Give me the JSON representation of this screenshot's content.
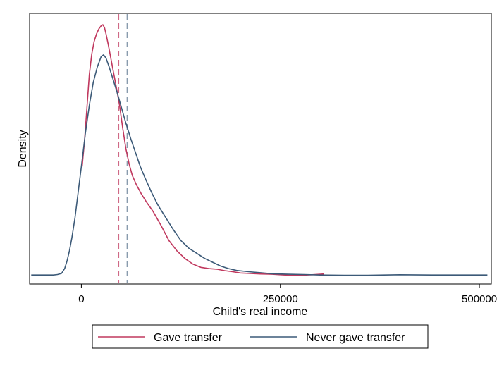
{
  "chart_data": {
    "type": "line",
    "title": "",
    "xlabel": "Child's real income",
    "ylabel": "Density",
    "xlim": [
      -65000,
      515000
    ],
    "ylim": [
      0,
      1.0
    ],
    "x_ticks": [
      {
        "value": 0,
        "label": "0"
      },
      {
        "value": 250000,
        "label": "250000"
      },
      {
        "value": 500000,
        "label": "500000"
      }
    ],
    "y_ticks": [],
    "grid": false,
    "legend_position": "bottom",
    "series": [
      {
        "name": "Gave transfer",
        "color": "#c0385e",
        "mean": 46900,
        "points": [
          [
            1000,
            0.43
          ],
          [
            4000,
            0.53
          ],
          [
            7000,
            0.66
          ],
          [
            10000,
            0.79
          ],
          [
            13000,
            0.87
          ],
          [
            16000,
            0.92
          ],
          [
            19000,
            0.95
          ],
          [
            22000,
            0.97
          ],
          [
            25000,
            0.982
          ],
          [
            27000,
            0.986
          ],
          [
            29000,
            0.975
          ],
          [
            31000,
            0.95
          ],
          [
            34000,
            0.905
          ],
          [
            37000,
            0.855
          ],
          [
            40000,
            0.805
          ],
          [
            44000,
            0.74
          ],
          [
            48000,
            0.67
          ],
          [
            52000,
            0.58
          ],
          [
            56000,
            0.5
          ],
          [
            60000,
            0.44
          ],
          [
            64000,
            0.395
          ],
          [
            69000,
            0.36
          ],
          [
            75000,
            0.325
          ],
          [
            82000,
            0.29
          ],
          [
            90000,
            0.255
          ],
          [
            100000,
            0.2
          ],
          [
            110000,
            0.14
          ],
          [
            120000,
            0.1
          ],
          [
            130000,
            0.07
          ],
          [
            140000,
            0.048
          ],
          [
            150000,
            0.035
          ],
          [
            160000,
            0.03
          ],
          [
            170000,
            0.028
          ],
          [
            180000,
            0.022
          ],
          [
            190000,
            0.018
          ],
          [
            200000,
            0.013
          ],
          [
            212000,
            0.011
          ],
          [
            225000,
            0.009
          ],
          [
            240000,
            0.008
          ],
          [
            250000,
            0.006
          ],
          [
            262000,
            0.004
          ],
          [
            275000,
            0.004
          ],
          [
            290000,
            0.006
          ],
          [
            300000,
            0.008
          ],
          [
            305000,
            0.009
          ]
        ]
      },
      {
        "name": "Never gave transfer",
        "color": "#3c5a78",
        "mean": 57500,
        "points": [
          [
            -63000,
            0.005
          ],
          [
            -55000,
            0.005
          ],
          [
            -45000,
            0.005
          ],
          [
            -35000,
            0.005
          ],
          [
            -30000,
            0.007
          ],
          [
            -25000,
            0.011
          ],
          [
            -21000,
            0.03
          ],
          [
            -18000,
            0.06
          ],
          [
            -15000,
            0.1
          ],
          [
            -12000,
            0.15
          ],
          [
            -8000,
            0.23
          ],
          [
            -4000,
            0.33
          ],
          [
            0,
            0.43
          ],
          [
            5000,
            0.56
          ],
          [
            10000,
            0.67
          ],
          [
            15000,
            0.76
          ],
          [
            20000,
            0.82
          ],
          [
            25000,
            0.862
          ],
          [
            28000,
            0.868
          ],
          [
            31000,
            0.855
          ],
          [
            35000,
            0.82
          ],
          [
            40000,
            0.77
          ],
          [
            45000,
            0.72
          ],
          [
            50000,
            0.665
          ],
          [
            56000,
            0.6
          ],
          [
            62000,
            0.54
          ],
          [
            68000,
            0.485
          ],
          [
            74000,
            0.43
          ],
          [
            80000,
            0.385
          ],
          [
            88000,
            0.33
          ],
          [
            96000,
            0.28
          ],
          [
            105000,
            0.235
          ],
          [
            115000,
            0.185
          ],
          [
            125000,
            0.14
          ],
          [
            135000,
            0.11
          ],
          [
            145000,
            0.09
          ],
          [
            155000,
            0.07
          ],
          [
            165000,
            0.055
          ],
          [
            175000,
            0.04
          ],
          [
            185000,
            0.03
          ],
          [
            195000,
            0.023
          ],
          [
            210000,
            0.018
          ],
          [
            225000,
            0.014
          ],
          [
            240000,
            0.01
          ],
          [
            260000,
            0.008
          ],
          [
            280000,
            0.007
          ],
          [
            300000,
            0.005
          ],
          [
            330000,
            0.004
          ],
          [
            360000,
            0.004
          ],
          [
            400000,
            0.006
          ],
          [
            440000,
            0.005
          ],
          [
            480000,
            0.005
          ],
          [
            510000,
            0.005
          ]
        ]
      }
    ]
  }
}
